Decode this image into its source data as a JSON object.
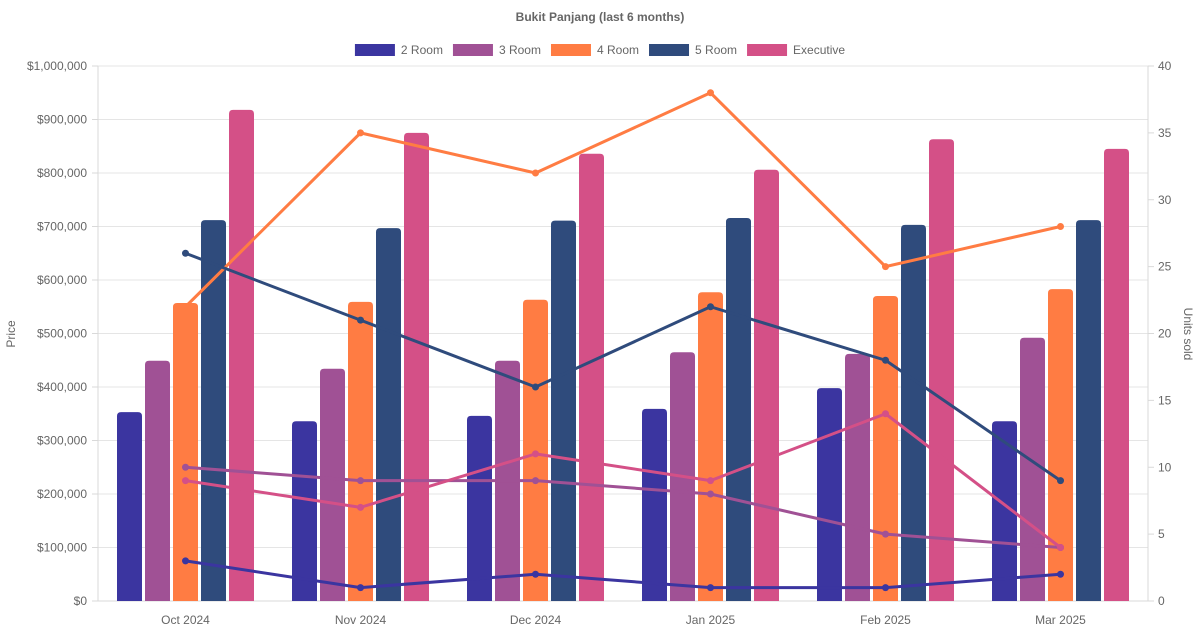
{
  "chart_data": {
    "type": "bar",
    "title": "Bukit Panjang (last 6 months)",
    "categories": [
      "Oct 2024",
      "Nov 2024",
      "Dec 2024",
      "Jan 2025",
      "Feb 2025",
      "Mar 2025"
    ],
    "xlabel": "",
    "ylabel": "Price",
    "y2label": "Units sold",
    "ylim": [
      0,
      1000000
    ],
    "y2lim": [
      0,
      40
    ],
    "yticks": [
      "$0",
      "$100,000",
      "$200,000",
      "$300,000",
      "$400,000",
      "$500,000",
      "$600,000",
      "$700,000",
      "$800,000",
      "$900,000",
      "$1,000,000"
    ],
    "y2ticks": [
      "0",
      "5",
      "10",
      "15",
      "20",
      "25",
      "30",
      "35",
      "40"
    ],
    "grid": true,
    "legend_position": "top",
    "series": [
      {
        "name": "2 Room",
        "type": "bar",
        "axis": "left",
        "color": "#3b35a0",
        "values": [
          353000,
          336000,
          346000,
          359000,
          398000,
          336000
        ]
      },
      {
        "name": "3 Room",
        "type": "bar",
        "axis": "left",
        "color": "#a05195",
        "values": [
          449000,
          434000,
          449000,
          465000,
          462000,
          492000
        ]
      },
      {
        "name": "4 Room",
        "type": "bar",
        "axis": "left",
        "color": "#ff7c43",
        "values": [
          557000,
          559000,
          563000,
          577000,
          570000,
          583000
        ]
      },
      {
        "name": "5 Room",
        "type": "bar",
        "axis": "left",
        "color": "#2f4b7c",
        "values": [
          712000,
          697000,
          711000,
          716000,
          703000,
          712000
        ]
      },
      {
        "name": "Executive",
        "type": "bar",
        "axis": "left",
        "color": "#d45087",
        "values": [
          918000,
          875000,
          836000,
          806000,
          863000,
          845000
        ]
      },
      {
        "name": "2 Room",
        "type": "line",
        "axis": "right",
        "color": "#3b35a0",
        "values": [
          3,
          1,
          2,
          1,
          1,
          2
        ]
      },
      {
        "name": "3 Room",
        "type": "line",
        "axis": "right",
        "color": "#a05195",
        "values": [
          10,
          9,
          9,
          8,
          5,
          4
        ]
      },
      {
        "name": "4 Room",
        "type": "line",
        "axis": "right",
        "color": "#ff7c43",
        "values": [
          22,
          35,
          32,
          38,
          25,
          28
        ]
      },
      {
        "name": "5 Room",
        "type": "line",
        "axis": "right",
        "color": "#2f4b7c",
        "values": [
          26,
          21,
          16,
          22,
          18,
          9
        ]
      },
      {
        "name": "Executive",
        "type": "line",
        "axis": "right",
        "color": "#d45087",
        "values": [
          9,
          7,
          11,
          9,
          14,
          4
        ]
      }
    ],
    "legend": [
      {
        "label": "2 Room",
        "color": "#3b35a0"
      },
      {
        "label": "3 Room",
        "color": "#a05195"
      },
      {
        "label": "4 Room",
        "color": "#ff7c43"
      },
      {
        "label": "5 Room",
        "color": "#2f4b7c"
      },
      {
        "label": "Executive",
        "color": "#d45087"
      }
    ]
  }
}
